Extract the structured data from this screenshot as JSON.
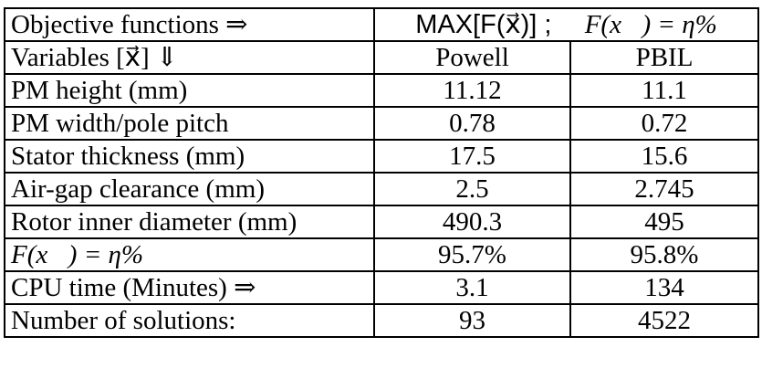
{
  "table": {
    "objective_label": "Objective functions ⇒",
    "objective_value_max": "MAX[F(x⃗)] ;",
    "objective_value_eq": "F(x⃗) = η%",
    "variables_label": "Variables [x⃗] ⇓",
    "methods": [
      "Powell",
      "PBIL"
    ],
    "rows": [
      {
        "label": "PM height (mm)",
        "powell": "11.12",
        "pbil": "11.1"
      },
      {
        "label": "PM width/pole pitch",
        "powell": "0.78",
        "pbil": "0.72"
      },
      {
        "label": "Stator thickness (mm)",
        "powell": "17.5",
        "pbil": "15.6"
      },
      {
        "label": "Air-gap clearance (mm)",
        "powell": "2.5",
        "pbil": "2.745"
      },
      {
        "label": "Rotor inner diameter (mm)",
        "powell": "490.3",
        "pbil": "495"
      },
      {
        "label": "F(x⃗) = η%",
        "powell": "95.7%",
        "pbil": "95.8%"
      },
      {
        "label": "CPU time (Minutes) ⇒",
        "powell": "3.1",
        "pbil": "134"
      },
      {
        "label": "Number of solutions:",
        "powell": "93",
        "pbil": "4522"
      }
    ]
  }
}
